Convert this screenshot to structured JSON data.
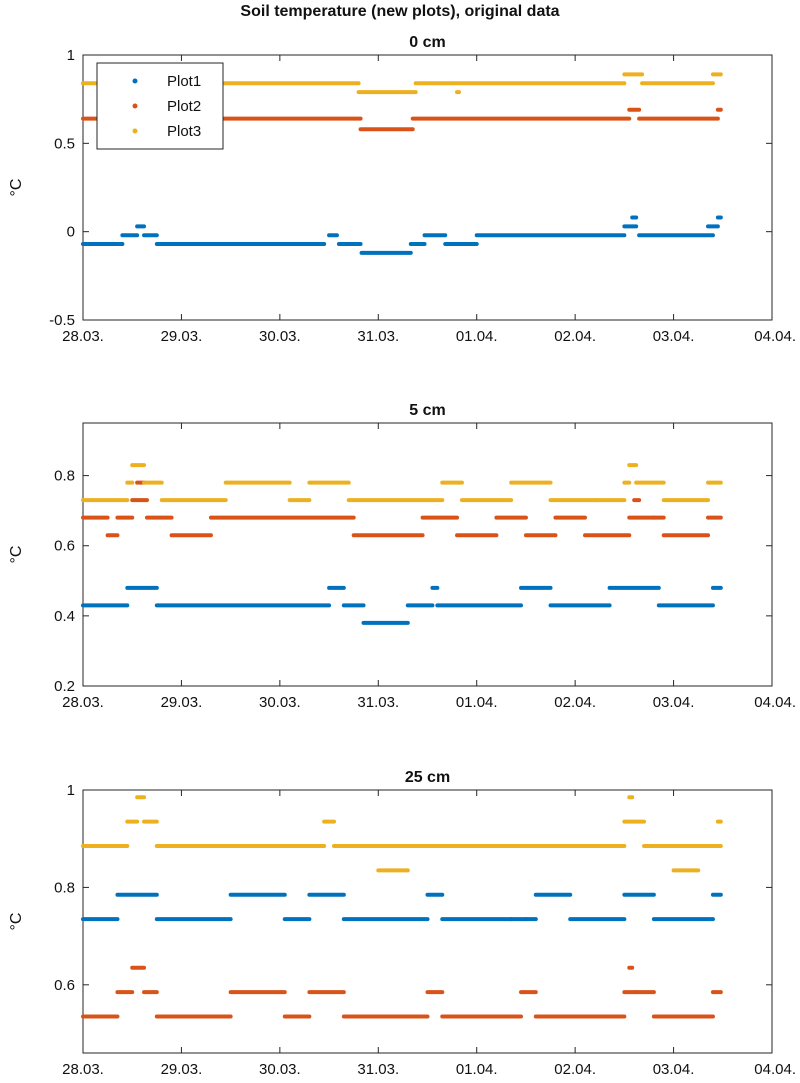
{
  "figure": {
    "suptitle": "Soil temperature (new plots), original data"
  },
  "colors": {
    "Plot1": "#0072bd",
    "Plot2": "#d95319",
    "Plot3": "#edb120"
  },
  "chart_data": [
    {
      "type": "scatter",
      "title": "0 cm",
      "xlabel": "",
      "ylabel": "°C",
      "xlim": [
        "28.03.",
        "04.04."
      ],
      "ylim": [
        -0.5,
        1
      ],
      "yticks": [
        -0.5,
        0,
        0.5,
        1
      ],
      "yticklabels": [
        "-0.5",
        "0",
        "0.5",
        "1"
      ],
      "xticks": [
        "28.03.",
        "29.03.",
        "30.03.",
        "31.03.",
        "01.04.",
        "02.04.",
        "03.04.",
        "04.04."
      ],
      "legend": {
        "position": "top-left",
        "entries": [
          "Plot1",
          "Plot2",
          "Plot3"
        ]
      },
      "grid": false,
      "series": [
        {
          "name": "Plot1",
          "color": "#0072bd",
          "segments": [
            {
              "x0": 0.0,
              "x1": 0.4,
              "y": -0.07
            },
            {
              "x0": 0.4,
              "x1": 0.55,
              "y": -0.02
            },
            {
              "x0": 0.55,
              "x1": 0.62,
              "y": 0.03
            },
            {
              "x0": 0.62,
              "x1": 0.75,
              "y": -0.02
            },
            {
              "x0": 0.75,
              "x1": 2.45,
              "y": -0.07
            },
            {
              "x0": 2.5,
              "x1": 2.58,
              "y": -0.02
            },
            {
              "x0": 2.6,
              "x1": 2.82,
              "y": -0.07
            },
            {
              "x0": 2.83,
              "x1": 3.33,
              "y": -0.12
            },
            {
              "x0": 3.33,
              "x1": 3.47,
              "y": -0.07
            },
            {
              "x0": 3.47,
              "x1": 3.68,
              "y": -0.02
            },
            {
              "x0": 3.68,
              "x1": 4.0,
              "y": -0.07
            },
            {
              "x0": 4.0,
              "x1": 5.5,
              "y": -0.02
            },
            {
              "x0": 5.5,
              "x1": 5.62,
              "y": 0.03
            },
            {
              "x0": 5.58,
              "x1": 5.62,
              "y": 0.08
            },
            {
              "x0": 5.65,
              "x1": 6.4,
              "y": -0.02
            },
            {
              "x0": 6.35,
              "x1": 6.45,
              "y": 0.03
            },
            {
              "x0": 6.45,
              "x1": 6.48,
              "y": 0.08
            }
          ]
        },
        {
          "name": "Plot2",
          "color": "#d95319",
          "segments": [
            {
              "x0": 0.0,
              "x1": 2.82,
              "y": 0.64
            },
            {
              "x0": 2.82,
              "x1": 3.35,
              "y": 0.58
            },
            {
              "x0": 3.35,
              "x1": 5.55,
              "y": 0.64
            },
            {
              "x0": 5.55,
              "x1": 5.65,
              "y": 0.69
            },
            {
              "x0": 5.65,
              "x1": 6.45,
              "y": 0.64
            },
            {
              "x0": 6.45,
              "x1": 6.48,
              "y": 0.69
            }
          ]
        },
        {
          "name": "Plot3",
          "color": "#edb120",
          "segments": [
            {
              "x0": 0.0,
              "x1": 2.8,
              "y": 0.84
            },
            {
              "x0": 2.8,
              "x1": 3.38,
              "y": 0.79
            },
            {
              "x0": 3.38,
              "x1": 5.5,
              "y": 0.84
            },
            {
              "x0": 3.8,
              "x1": 3.82,
              "y": 0.79
            },
            {
              "x0": 5.5,
              "x1": 5.68,
              "y": 0.89
            },
            {
              "x0": 5.68,
              "x1": 6.4,
              "y": 0.84
            },
            {
              "x0": 6.4,
              "x1": 6.48,
              "y": 0.89
            },
            {
              "x0": 0.6,
              "x1": 0.62,
              "y": 0.94
            }
          ]
        }
      ]
    },
    {
      "type": "scatter",
      "title": "5 cm",
      "xlabel": "",
      "ylabel": "°C",
      "xlim": [
        "28.03.",
        "04.04."
      ],
      "ylim": [
        0.2,
        0.95
      ],
      "yticks": [
        0.2,
        0.4,
        0.6,
        0.8
      ],
      "yticklabels": [
        "0.2",
        "0.4",
        "0.6",
        "0.8"
      ],
      "xticks": [
        "28.03.",
        "29.03.",
        "30.03.",
        "31.03.",
        "01.04.",
        "02.04.",
        "03.04.",
        "04.04."
      ],
      "grid": false,
      "series": [
        {
          "name": "Plot1",
          "color": "#0072bd",
          "segments": [
            {
              "x0": 0.0,
              "x1": 0.45,
              "y": 0.43
            },
            {
              "x0": 0.45,
              "x1": 0.75,
              "y": 0.48
            },
            {
              "x0": 0.75,
              "x1": 2.5,
              "y": 0.43
            },
            {
              "x0": 2.5,
              "x1": 2.65,
              "y": 0.48
            },
            {
              "x0": 2.65,
              "x1": 2.85,
              "y": 0.43
            },
            {
              "x0": 2.85,
              "x1": 3.3,
              "y": 0.38
            },
            {
              "x0": 3.3,
              "x1": 3.55,
              "y": 0.43
            },
            {
              "x0": 3.55,
              "x1": 3.6,
              "y": 0.48
            },
            {
              "x0": 3.6,
              "x1": 4.45,
              "y": 0.43
            },
            {
              "x0": 4.45,
              "x1": 4.75,
              "y": 0.48
            },
            {
              "x0": 4.75,
              "x1": 5.35,
              "y": 0.43
            },
            {
              "x0": 5.35,
              "x1": 5.85,
              "y": 0.48
            },
            {
              "x0": 5.85,
              "x1": 6.4,
              "y": 0.43
            },
            {
              "x0": 6.4,
              "x1": 6.48,
              "y": 0.48
            }
          ]
        },
        {
          "name": "Plot2",
          "color": "#d95319",
          "segments": [
            {
              "x0": 0.0,
              "x1": 0.25,
              "y": 0.68
            },
            {
              "x0": 0.25,
              "x1": 0.35,
              "y": 0.63
            },
            {
              "x0": 0.35,
              "x1": 0.5,
              "y": 0.68
            },
            {
              "x0": 0.5,
              "x1": 0.65,
              "y": 0.73
            },
            {
              "x0": 0.55,
              "x1": 0.62,
              "y": 0.78
            },
            {
              "x0": 0.65,
              "x1": 0.9,
              "y": 0.68
            },
            {
              "x0": 0.9,
              "x1": 1.3,
              "y": 0.63
            },
            {
              "x0": 1.3,
              "x1": 2.75,
              "y": 0.68
            },
            {
              "x0": 2.75,
              "x1": 3.45,
              "y": 0.63
            },
            {
              "x0": 3.45,
              "x1": 3.8,
              "y": 0.68
            },
            {
              "x0": 3.8,
              "x1": 4.2,
              "y": 0.63
            },
            {
              "x0": 4.2,
              "x1": 4.5,
              "y": 0.68
            },
            {
              "x0": 4.5,
              "x1": 4.8,
              "y": 0.63
            },
            {
              "x0": 4.8,
              "x1": 5.1,
              "y": 0.68
            },
            {
              "x0": 5.1,
              "x1": 5.55,
              "y": 0.63
            },
            {
              "x0": 5.55,
              "x1": 5.8,
              "y": 0.68
            },
            {
              "x0": 5.6,
              "x1": 5.65,
              "y": 0.73
            },
            {
              "x0": 5.8,
              "x1": 5.9,
              "y": 0.68
            },
            {
              "x0": 5.9,
              "x1": 6.35,
              "y": 0.63
            },
            {
              "x0": 6.35,
              "x1": 6.48,
              "y": 0.68
            }
          ]
        },
        {
          "name": "Plot3",
          "color": "#edb120",
          "segments": [
            {
              "x0": 0.0,
              "x1": 0.45,
              "y": 0.73
            },
            {
              "x0": 0.45,
              "x1": 0.5,
              "y": 0.78
            },
            {
              "x0": 0.5,
              "x1": 0.62,
              "y": 0.83
            },
            {
              "x0": 0.62,
              "x1": 0.8,
              "y": 0.78
            },
            {
              "x0": 0.8,
              "x1": 1.45,
              "y": 0.73
            },
            {
              "x0": 1.45,
              "x1": 2.1,
              "y": 0.78
            },
            {
              "x0": 2.1,
              "x1": 2.3,
              "y": 0.73
            },
            {
              "x0": 2.3,
              "x1": 2.7,
              "y": 0.78
            },
            {
              "x0": 2.7,
              "x1": 3.65,
              "y": 0.73
            },
            {
              "x0": 3.65,
              "x1": 3.85,
              "y": 0.78
            },
            {
              "x0": 3.85,
              "x1": 4.35,
              "y": 0.73
            },
            {
              "x0": 4.35,
              "x1": 4.75,
              "y": 0.78
            },
            {
              "x0": 4.75,
              "x1": 5.2,
              "y": 0.73
            },
            {
              "x0": 5.2,
              "x1": 5.5,
              "y": 0.73
            },
            {
              "x0": 5.5,
              "x1": 5.55,
              "y": 0.78
            },
            {
              "x0": 5.55,
              "x1": 5.62,
              "y": 0.83
            },
            {
              "x0": 5.62,
              "x1": 5.9,
              "y": 0.78
            },
            {
              "x0": 5.9,
              "x1": 6.35,
              "y": 0.73
            },
            {
              "x0": 6.35,
              "x1": 6.48,
              "y": 0.78
            }
          ]
        }
      ]
    },
    {
      "type": "scatter",
      "title": "25 cm",
      "xlabel": "",
      "ylabel": "°C",
      "xlim": [
        "28.03.",
        "04.04."
      ],
      "ylim": [
        0.46,
        1.0
      ],
      "yticks": [
        0.6,
        0.8,
        1.0
      ],
      "yticklabels": [
        "0.6",
        "0.8",
        "1"
      ],
      "xticks": [
        "28.03.",
        "29.03.",
        "30.03.",
        "31.03.",
        "01.04.",
        "02.04.",
        "03.04.",
        "04.04."
      ],
      "grid": false,
      "series": [
        {
          "name": "Plot1",
          "color": "#0072bd",
          "segments": [
            {
              "x0": 0.0,
              "x1": 0.35,
              "y": 0.735
            },
            {
              "x0": 0.35,
              "x1": 0.75,
              "y": 0.785
            },
            {
              "x0": 0.75,
              "x1": 1.5,
              "y": 0.735
            },
            {
              "x0": 1.5,
              "x1": 2.05,
              "y": 0.785
            },
            {
              "x0": 2.05,
              "x1": 2.3,
              "y": 0.735
            },
            {
              "x0": 2.3,
              "x1": 2.65,
              "y": 0.785
            },
            {
              "x0": 2.65,
              "x1": 3.5,
              "y": 0.735
            },
            {
              "x0": 3.5,
              "x1": 3.65,
              "y": 0.785
            },
            {
              "x0": 3.65,
              "x1": 4.35,
              "y": 0.735
            },
            {
              "x0": 4.35,
              "x1": 4.5,
              "y": 0.735
            },
            {
              "x0": 4.5,
              "x1": 4.6,
              "y": 0.735
            },
            {
              "x0": 4.6,
              "x1": 4.95,
              "y": 0.785
            },
            {
              "x0": 4.95,
              "x1": 5.5,
              "y": 0.735
            },
            {
              "x0": 5.5,
              "x1": 5.8,
              "y": 0.785
            },
            {
              "x0": 5.8,
              "x1": 6.4,
              "y": 0.735
            },
            {
              "x0": 6.4,
              "x1": 6.48,
              "y": 0.785
            }
          ]
        },
        {
          "name": "Plot2",
          "color": "#d95319",
          "segments": [
            {
              "x0": 0.0,
              "x1": 0.35,
              "y": 0.535
            },
            {
              "x0": 0.35,
              "x1": 0.5,
              "y": 0.585
            },
            {
              "x0": 0.5,
              "x1": 0.62,
              "y": 0.635
            },
            {
              "x0": 0.62,
              "x1": 0.75,
              "y": 0.585
            },
            {
              "x0": 0.75,
              "x1": 1.5,
              "y": 0.535
            },
            {
              "x0": 1.5,
              "x1": 2.05,
              "y": 0.585
            },
            {
              "x0": 2.05,
              "x1": 2.3,
              "y": 0.535
            },
            {
              "x0": 2.3,
              "x1": 2.65,
              "y": 0.585
            },
            {
              "x0": 2.65,
              "x1": 3.5,
              "y": 0.535
            },
            {
              "x0": 3.5,
              "x1": 3.65,
              "y": 0.585
            },
            {
              "x0": 3.65,
              "x1": 4.45,
              "y": 0.535
            },
            {
              "x0": 4.45,
              "x1": 4.6,
              "y": 0.585
            },
            {
              "x0": 4.6,
              "x1": 5.5,
              "y": 0.535
            },
            {
              "x0": 5.5,
              "x1": 5.62,
              "y": 0.585
            },
            {
              "x0": 5.55,
              "x1": 5.58,
              "y": 0.635
            },
            {
              "x0": 5.62,
              "x1": 5.8,
              "y": 0.585
            },
            {
              "x0": 5.8,
              "x1": 6.4,
              "y": 0.535
            },
            {
              "x0": 6.4,
              "x1": 6.48,
              "y": 0.585
            }
          ]
        },
        {
          "name": "Plot3",
          "color": "#edb120",
          "segments": [
            {
              "x0": 0.0,
              "x1": 0.45,
              "y": 0.885
            },
            {
              "x0": 0.45,
              "x1": 0.55,
              "y": 0.935
            },
            {
              "x0": 0.55,
              "x1": 0.62,
              "y": 0.985
            },
            {
              "x0": 0.62,
              "x1": 0.75,
              "y": 0.935
            },
            {
              "x0": 0.75,
              "x1": 2.45,
              "y": 0.885
            },
            {
              "x0": 2.45,
              "x1": 2.55,
              "y": 0.935
            },
            {
              "x0": 2.55,
              "x1": 5.5,
              "y": 0.885
            },
            {
              "x0": 3.0,
              "x1": 3.3,
              "y": 0.835
            },
            {
              "x0": 5.5,
              "x1": 5.7,
              "y": 0.935
            },
            {
              "x0": 5.55,
              "x1": 5.58,
              "y": 0.985
            },
            {
              "x0": 5.7,
              "x1": 6.48,
              "y": 0.885
            },
            {
              "x0": 6.0,
              "x1": 6.25,
              "y": 0.835
            },
            {
              "x0": 6.45,
              "x1": 6.48,
              "y": 0.935
            }
          ]
        }
      ]
    }
  ]
}
